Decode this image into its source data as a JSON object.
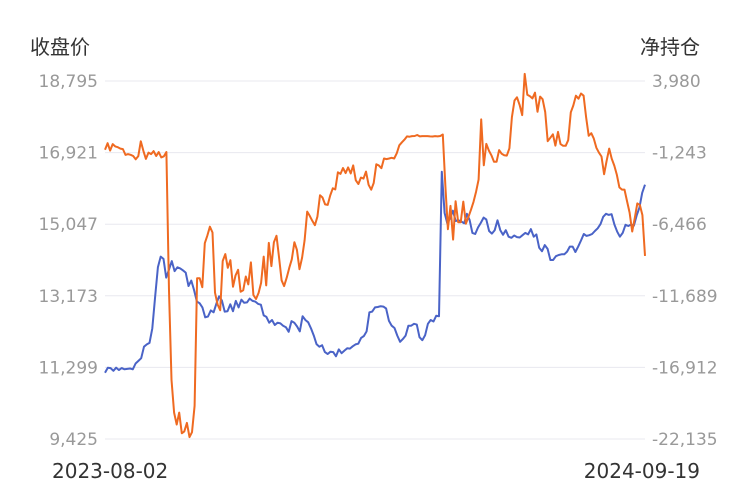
{
  "chart_data": {
    "type": "line",
    "left_axis": {
      "title": "收盘价",
      "ticks": [
        "18,795",
        "16,921",
        "15,047",
        "13,173",
        "11,299",
        "9,425"
      ],
      "ylim": [
        9425,
        18795
      ]
    },
    "right_axis": {
      "title": "净持仓",
      "ticks": [
        "3,980",
        "-1,243",
        "-6,466",
        "-11,689",
        "-16,912",
        "-22,135"
      ],
      "ylim": [
        -22135,
        3980
      ]
    },
    "x_labels": {
      "start": "2023-08-02",
      "end": "2024-09-19"
    },
    "grid": true,
    "colors": {
      "close": "#4a63c7",
      "net": "#ef6a21"
    },
    "series": [
      {
        "axis": "left",
        "color": "#4a63c7",
        "values": [
          11160,
          11290,
          11280,
          11210,
          11290,
          11230,
          11280,
          11250,
          11260,
          11270,
          11250,
          11400,
          11470,
          11540,
          11840,
          11900,
          11940,
          12320,
          13140,
          13920,
          14200,
          14140,
          13650,
          13860,
          14080,
          13820,
          13920,
          13890,
          13840,
          13780,
          13430,
          13570,
          13320,
          13020,
          12980,
          12870,
          12610,
          12630,
          12790,
          12740,
          12960,
          13160,
          13050,
          12760,
          12770,
          12950,
          12770,
          13040,
          12870,
          13070,
          12990,
          13000,
          13100,
          13040,
          13020,
          12960,
          12940,
          12660,
          12620,
          12470,
          12540,
          12410,
          12470,
          12450,
          12390,
          12350,
          12230,
          12510,
          12470,
          12370,
          12240,
          12640,
          12540,
          12480,
          12320,
          12130,
          11910,
          11840,
          11880,
          11700,
          11650,
          11710,
          11700,
          11590,
          11770,
          11670,
          11740,
          11800,
          11790,
          11850,
          11900,
          11920,
          12070,
          12120,
          12240,
          12740,
          12760,
          12870,
          12880,
          12900,
          12890,
          12840,
          12520,
          12390,
          12330,
          12130,
          11970,
          12040,
          12130,
          12390,
          12390,
          12440,
          12420,
          12090,
          12010,
          12140,
          12440,
          12540,
          12500,
          12650,
          12640,
          16420,
          15340,
          15060,
          15220,
          15400,
          15130,
          15150,
          15120,
          15070,
          15320,
          15160,
          14820,
          14790,
          14960,
          15080,
          15220,
          15170,
          14870,
          14800,
          14890,
          15150,
          14890,
          14770,
          14890,
          14720,
          14690,
          14750,
          14710,
          14700,
          14760,
          14820,
          14780,
          14920,
          14720,
          14780,
          14430,
          14340,
          14500,
          14400,
          14110,
          14110,
          14210,
          14240,
          14260,
          14260,
          14330,
          14460,
          14460,
          14320,
          14460,
          14620,
          14790,
          14740,
          14760,
          14790,
          14870,
          14940,
          15050,
          15240,
          15320,
          15290,
          15310,
          15040,
          14850,
          14720,
          14820,
          15030,
          15000,
          15040,
          15010,
          15270,
          15480,
          15870,
          16080
        ]
      },
      {
        "axis": "right",
        "color": "#ef6a21",
        "values": [
          -1030,
          -560,
          -1100,
          -620,
          -790,
          -850,
          -950,
          -990,
          -1410,
          -1350,
          -1400,
          -1490,
          -1730,
          -1500,
          -420,
          -1120,
          -1700,
          -1240,
          -1350,
          -1130,
          -1490,
          -1210,
          -1590,
          -1510,
          -1200,
          -11320,
          -17820,
          -20210,
          -21080,
          -20210,
          -21720,
          -21580,
          -20960,
          -22000,
          -21640,
          -19720,
          -10410,
          -10410,
          -11060,
          -7850,
          -7280,
          -6650,
          -7070,
          -11460,
          -12320,
          -12740,
          -9150,
          -8650,
          -9650,
          -9090,
          -11030,
          -10210,
          -9790,
          -11400,
          -11290,
          -10280,
          -10860,
          -9250,
          -11630,
          -11920,
          -11480,
          -10750,
          -8830,
          -10930,
          -7830,
          -9520,
          -7780,
          -7310,
          -8860,
          -10560,
          -10980,
          -10370,
          -9640,
          -9030,
          -7780,
          -8330,
          -9750,
          -8900,
          -7640,
          -5550,
          -5850,
          -6220,
          -6540,
          -5920,
          -4350,
          -4520,
          -5020,
          -5060,
          -4370,
          -3850,
          -3930,
          -2680,
          -2800,
          -2370,
          -2740,
          -2320,
          -2760,
          -2180,
          -3260,
          -3530,
          -3070,
          -3140,
          -2630,
          -3590,
          -3950,
          -3460,
          -2100,
          -2180,
          -2380,
          -1670,
          -1720,
          -1670,
          -1620,
          -1670,
          -1290,
          -710,
          -490,
          -300,
          -60,
          -80,
          -40,
          -30,
          40,
          -60,
          -40,
          -40,
          -40,
          -60,
          -70,
          -40,
          -60,
          -30,
          80,
          -3710,
          -6830,
          -5130,
          -7590,
          -4790,
          -6330,
          -6330,
          -4820,
          -6430,
          -5940,
          -5410,
          -4840,
          -4090,
          -3210,
          1180,
          -2170,
          -610,
          -1100,
          -1440,
          -1910,
          -1910,
          -1060,
          -1330,
          -1430,
          -1460,
          -930,
          1340,
          2560,
          2790,
          2240,
          1490,
          4500,
          2980,
          2880,
          2710,
          3130,
          1730,
          2840,
          2650,
          1720,
          -410,
          -160,
          90,
          -730,
          270,
          -620,
          -750,
          -750,
          -340,
          1700,
          2190,
          2910,
          2690,
          3070,
          2910,
          1350,
          -20,
          170,
          -220,
          -890,
          -1240,
          -1530,
          -2820,
          -1850,
          -950,
          -1680,
          -2190,
          -2850,
          -3780,
          -3940,
          -3940,
          -4810,
          -5620,
          -7000,
          -6010,
          -4950,
          -5070,
          -5800,
          -8780
        ]
      }
    ]
  }
}
